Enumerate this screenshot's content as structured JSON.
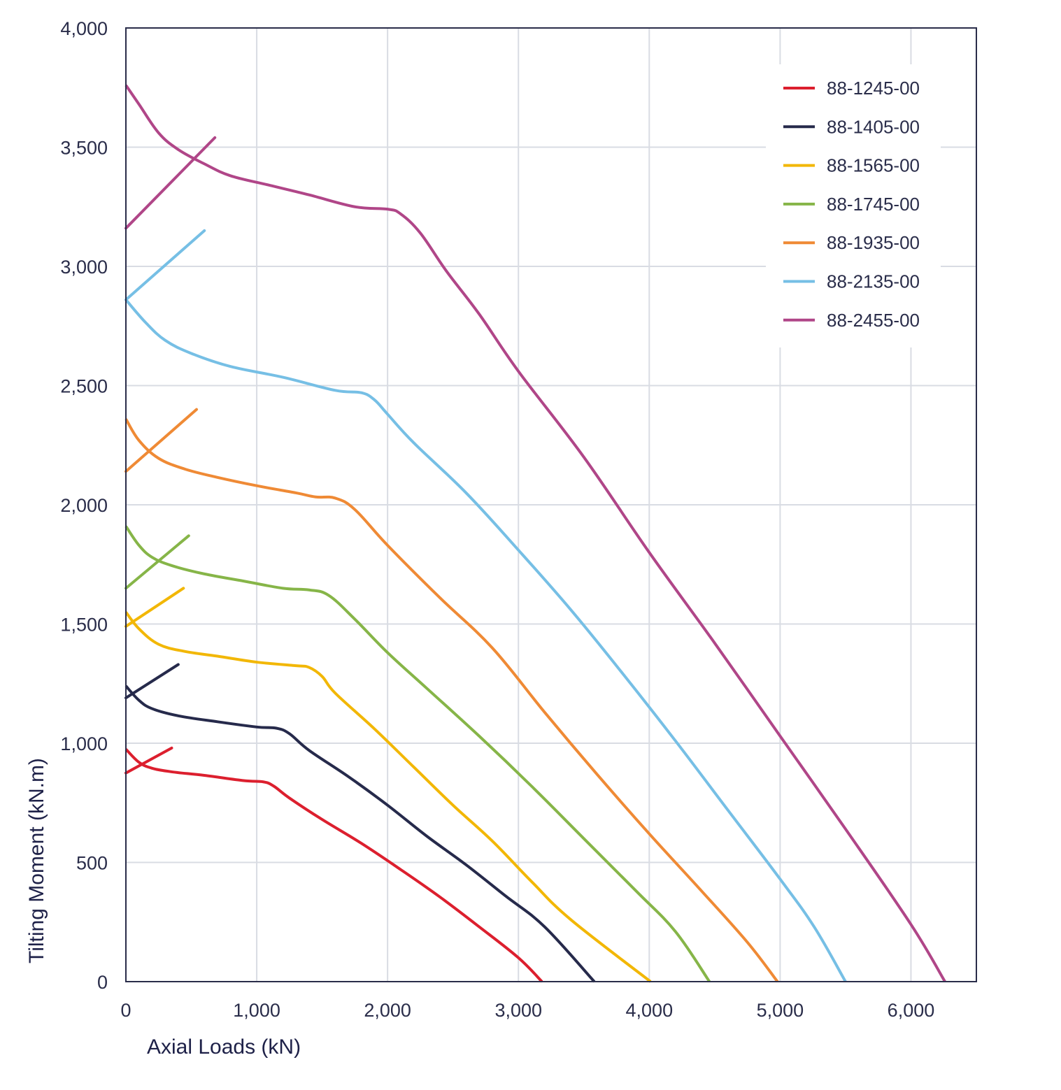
{
  "chart_data": {
    "type": "line",
    "title": "",
    "xlabel": "Axial Loads (kN)",
    "ylabel": "Tilting Moment (kN.m)",
    "xlim": [
      0,
      6500
    ],
    "ylim": [
      0,
      4000
    ],
    "x_ticks": [
      "0",
      "1,000",
      "2,000",
      "3,000",
      "4,000",
      "5,000",
      "6,000"
    ],
    "y_ticks": [
      "0",
      "500",
      "1,000",
      "1,500",
      "2,000",
      "2,500",
      "3,000",
      "3,500",
      "4,000"
    ],
    "x_tick_values": [
      0,
      1000,
      2000,
      3000,
      4000,
      5000,
      6000
    ],
    "y_tick_values": [
      0,
      500,
      1000,
      1500,
      2000,
      2500,
      3000,
      3500,
      4000
    ],
    "grid": true,
    "legend_position": "top-right",
    "series": [
      {
        "name": "88-1245-00",
        "color": "#dc1f2e",
        "values": [
          [
            0,
            975
          ],
          [
            100,
            920
          ],
          [
            200,
            895
          ],
          [
            350,
            880
          ],
          [
            600,
            865
          ],
          [
            900,
            843
          ],
          [
            1050,
            838
          ],
          [
            1130,
            820
          ],
          [
            1250,
            770
          ],
          [
            1500,
            680
          ],
          [
            1800,
            580
          ],
          [
            2100,
            470
          ],
          [
            2400,
            355
          ],
          [
            2700,
            230
          ],
          [
            3000,
            100
          ],
          [
            3180,
            0
          ]
        ],
        "branch": [
          [
            0,
            875
          ],
          [
            350,
            980
          ]
        ]
      },
      {
        "name": "88-1405-00",
        "color": "#262a4b",
        "values": [
          [
            0,
            1240
          ],
          [
            100,
            1180
          ],
          [
            200,
            1145
          ],
          [
            400,
            1115
          ],
          [
            700,
            1090
          ],
          [
            1000,
            1068
          ],
          [
            1150,
            1063
          ],
          [
            1250,
            1040
          ],
          [
            1400,
            970
          ],
          [
            1700,
            860
          ],
          [
            2000,
            740
          ],
          [
            2300,
            610
          ],
          [
            2600,
            490
          ],
          [
            2900,
            360
          ],
          [
            3200,
            230
          ],
          [
            3580,
            0
          ]
        ],
        "branch": [
          [
            0,
            1190
          ],
          [
            400,
            1330
          ]
        ]
      },
      {
        "name": "88-1565-00",
        "color": "#f2b706",
        "values": [
          [
            0,
            1550
          ],
          [
            100,
            1480
          ],
          [
            250,
            1415
          ],
          [
            450,
            1385
          ],
          [
            700,
            1365
          ],
          [
            1000,
            1340
          ],
          [
            1300,
            1325
          ],
          [
            1400,
            1318
          ],
          [
            1500,
            1280
          ],
          [
            1600,
            1210
          ],
          [
            1900,
            1060
          ],
          [
            2200,
            900
          ],
          [
            2500,
            740
          ],
          [
            2800,
            590
          ],
          [
            3100,
            420
          ],
          [
            3400,
            260
          ],
          [
            4010,
            0
          ]
        ],
        "branch": [
          [
            0,
            1490
          ],
          [
            440,
            1650
          ]
        ]
      },
      {
        "name": "88-1745-00",
        "color": "#86b548",
        "values": [
          [
            0,
            1910
          ],
          [
            100,
            1830
          ],
          [
            200,
            1780
          ],
          [
            350,
            1745
          ],
          [
            600,
            1710
          ],
          [
            900,
            1680
          ],
          [
            1200,
            1650
          ],
          [
            1400,
            1643
          ],
          [
            1550,
            1620
          ],
          [
            1750,
            1520
          ],
          [
            2000,
            1380
          ],
          [
            2300,
            1230
          ],
          [
            2700,
            1030
          ],
          [
            3100,
            820
          ],
          [
            3500,
            600
          ],
          [
            3900,
            380
          ],
          [
            4200,
            210
          ],
          [
            4460,
            0
          ]
        ],
        "branch": [
          [
            0,
            1650
          ],
          [
            480,
            1870
          ]
        ]
      },
      {
        "name": "88-1935-00",
        "color": "#ef8a35",
        "values": [
          [
            0,
            2360
          ],
          [
            100,
            2270
          ],
          [
            250,
            2195
          ],
          [
            450,
            2150
          ],
          [
            700,
            2115
          ],
          [
            1000,
            2080
          ],
          [
            1300,
            2050
          ],
          [
            1450,
            2033
          ],
          [
            1600,
            2028
          ],
          [
            1750,
            1980
          ],
          [
            2000,
            1830
          ],
          [
            2400,
            1610
          ],
          [
            2800,
            1400
          ],
          [
            3200,
            1130
          ],
          [
            3600,
            870
          ],
          [
            4000,
            620
          ],
          [
            4400,
            380
          ],
          [
            4750,
            165
          ],
          [
            4980,
            0
          ]
        ],
        "branch": [
          [
            0,
            2140
          ],
          [
            540,
            2400
          ]
        ]
      },
      {
        "name": "88-2135-00",
        "color": "#76bfe5",
        "values": [
          [
            0,
            2860
          ],
          [
            150,
            2765
          ],
          [
            300,
            2690
          ],
          [
            500,
            2635
          ],
          [
            800,
            2580
          ],
          [
            1200,
            2535
          ],
          [
            1600,
            2480
          ],
          [
            1800,
            2470
          ],
          [
            1900,
            2440
          ],
          [
            2000,
            2380
          ],
          [
            2200,
            2260
          ],
          [
            2600,
            2050
          ],
          [
            3000,
            1810
          ],
          [
            3400,
            1560
          ],
          [
            3800,
            1290
          ],
          [
            4200,
            1010
          ],
          [
            4600,
            720
          ],
          [
            5000,
            430
          ],
          [
            5260,
            230
          ],
          [
            5500,
            0
          ]
        ],
        "branch": [
          [
            0,
            2860
          ],
          [
            600,
            3150
          ]
        ]
      },
      {
        "name": "88-2455-00",
        "color": "#b04688",
        "values": [
          [
            0,
            3760
          ],
          [
            100,
            3680
          ],
          [
            250,
            3560
          ],
          [
            400,
            3490
          ],
          [
            600,
            3430
          ],
          [
            800,
            3380
          ],
          [
            1100,
            3340
          ],
          [
            1400,
            3300
          ],
          [
            1750,
            3250
          ],
          [
            2000,
            3240
          ],
          [
            2100,
            3220
          ],
          [
            2250,
            3140
          ],
          [
            2450,
            2980
          ],
          [
            2700,
            2800
          ],
          [
            3000,
            2560
          ],
          [
            3500,
            2200
          ],
          [
            4000,
            1800
          ],
          [
            4500,
            1420
          ],
          [
            5000,
            1030
          ],
          [
            5500,
            640
          ],
          [
            6000,
            240
          ],
          [
            6260,
            0
          ]
        ],
        "branch": [
          [
            0,
            3160
          ],
          [
            680,
            3540
          ]
        ]
      }
    ]
  }
}
